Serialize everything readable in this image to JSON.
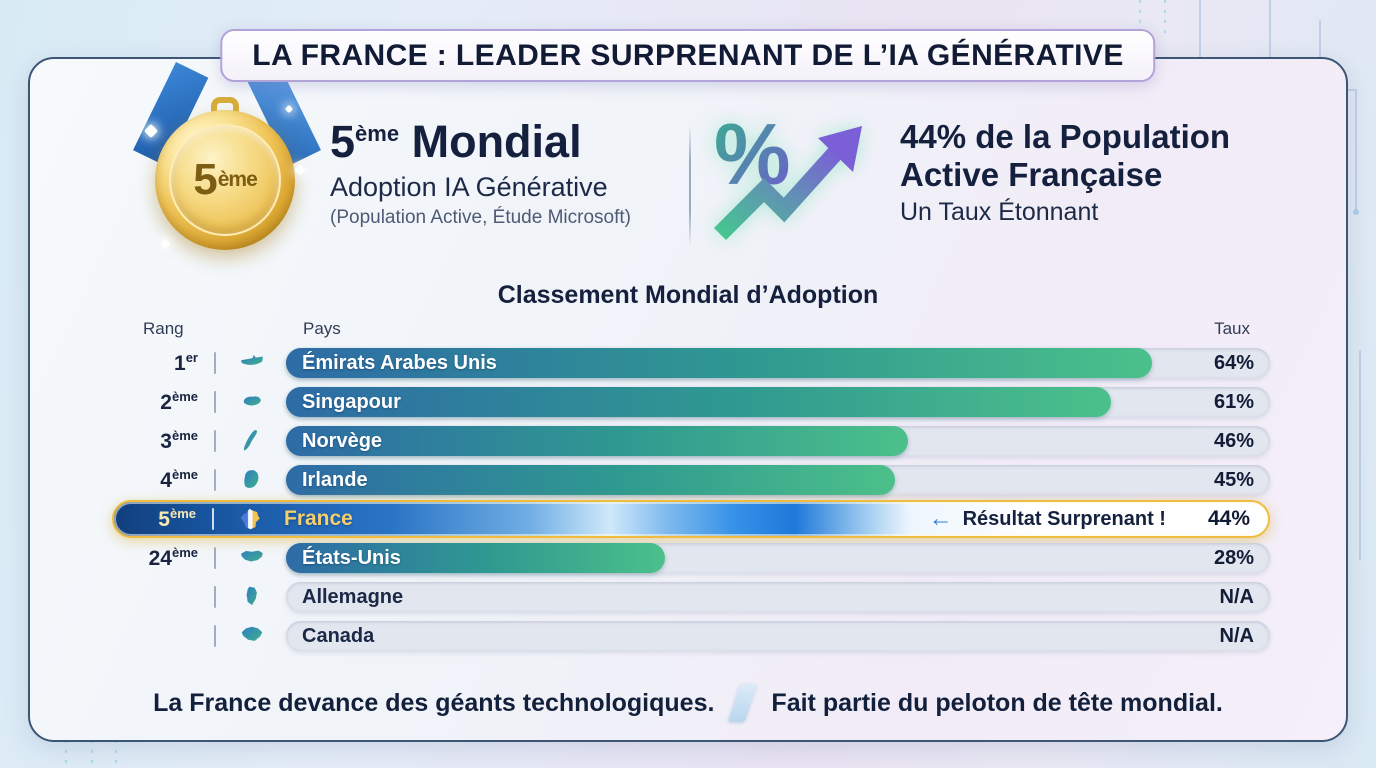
{
  "banner": {
    "title": "LA FRANCE : LEADER SURPRENANT DE L’IA GÉNÉRATIVE"
  },
  "hero": {
    "medal": {
      "icon": "gold-medal-icon",
      "number": "5",
      "suffix": "ème"
    },
    "rank_title": {
      "number": "5",
      "suffix": "ème",
      "rest": "Mondial"
    },
    "subtitle": "Adoption IA Générative",
    "source_note": "(Population Active, Étude Microsoft)",
    "stat_icon": "percent-growth-arrow-icon",
    "percent_glyph": "%",
    "stat_line1": "44% de la Population",
    "stat_line2": "Active Française",
    "stat_line3": "Un Taux Étonnant"
  },
  "chart": {
    "title": "Classement Mondial d’Adoption",
    "col_rank": "Rang",
    "col_country": "Pays",
    "col_rate": "Taux",
    "rows": [
      {
        "rank": "1",
        "rank_suffix": "er",
        "flag_icon": "uae-map-icon",
        "country": "Émirats Arabes Unis",
        "value": 64,
        "rate_label": "64%"
      },
      {
        "rank": "2",
        "rank_suffix": "ème",
        "flag_icon": "singapore-map-icon",
        "country": "Singapour",
        "value": 61,
        "rate_label": "61%"
      },
      {
        "rank": "3",
        "rank_suffix": "ème",
        "flag_icon": "norway-map-icon",
        "country": "Norvège",
        "value": 46,
        "rate_label": "46%"
      },
      {
        "rank": "4",
        "rank_suffix": "ème",
        "flag_icon": "ireland-map-icon",
        "country": "Irlande",
        "value": 45,
        "rate_label": "45%"
      },
      {
        "rank": "5",
        "rank_suffix": "ème",
        "flag_icon": "france-map-icon",
        "country": "France",
        "value": 44,
        "rate_label": "44%"
      },
      {
        "rank": "24",
        "rank_suffix": "ème",
        "flag_icon": "usa-map-icon",
        "country": "États-Unis",
        "value": 28,
        "rate_label": "28%"
      },
      {
        "rank": "",
        "rank_suffix": "",
        "flag_icon": "germany-map-icon",
        "country": "Allemagne",
        "value": null,
        "rate_label": "N/A"
      },
      {
        "rank": "",
        "rank_suffix": "",
        "flag_icon": "canada-map-icon",
        "country": "Canada",
        "value": null,
        "rate_label": "N/A"
      }
    ],
    "annotation": {
      "arrow_icon": "left-arrow-icon",
      "arrow": "←",
      "text": "Résultat Surprenant !"
    }
  },
  "footer": {
    "left": "La France devance des géants technologiques.",
    "right": "Fait partie du peloton de tête mondial."
  },
  "colors": {
    "navy_text": "#14203d",
    "gold_accent": "#eebd3f",
    "gold_label": "#f4cf6d",
    "bar_gradient_start": "#2e6ba6",
    "bar_gradient_end": "#4cc08b",
    "france_bar_blue": "#1f78d9",
    "track_gray": "#e2e6ef",
    "annotation_arrow_blue": "#2f7ddb",
    "banner_border_purple": "#b2a3d8",
    "panel_border": "#3c5674"
  },
  "chart_data": {
    "type": "bar",
    "orientation": "horizontal",
    "title": "Classement Mondial d’Adoption",
    "categories": [
      "Émirats Arabes Unis",
      "Singapour",
      "Norvège",
      "Irlande",
      "France",
      "États-Unis",
      "Allemagne",
      "Canada"
    ],
    "values": [
      64,
      61,
      46,
      45,
      44,
      28,
      null,
      null
    ],
    "value_labels": [
      "64%",
      "61%",
      "46%",
      "45%",
      "44%",
      "28%",
      "N/A",
      "N/A"
    ],
    "ranks": [
      "1er",
      "2ème",
      "3ème",
      "4ème",
      "5ème",
      "24ème",
      "",
      ""
    ],
    "xlabel": "Taux",
    "ylabel": "Pays",
    "xlim": [
      0,
      72
    ],
    "grid": false,
    "legend": false,
    "highlight_category": "France",
    "highlight_annotation": "← Résultat Surprenant !"
  }
}
